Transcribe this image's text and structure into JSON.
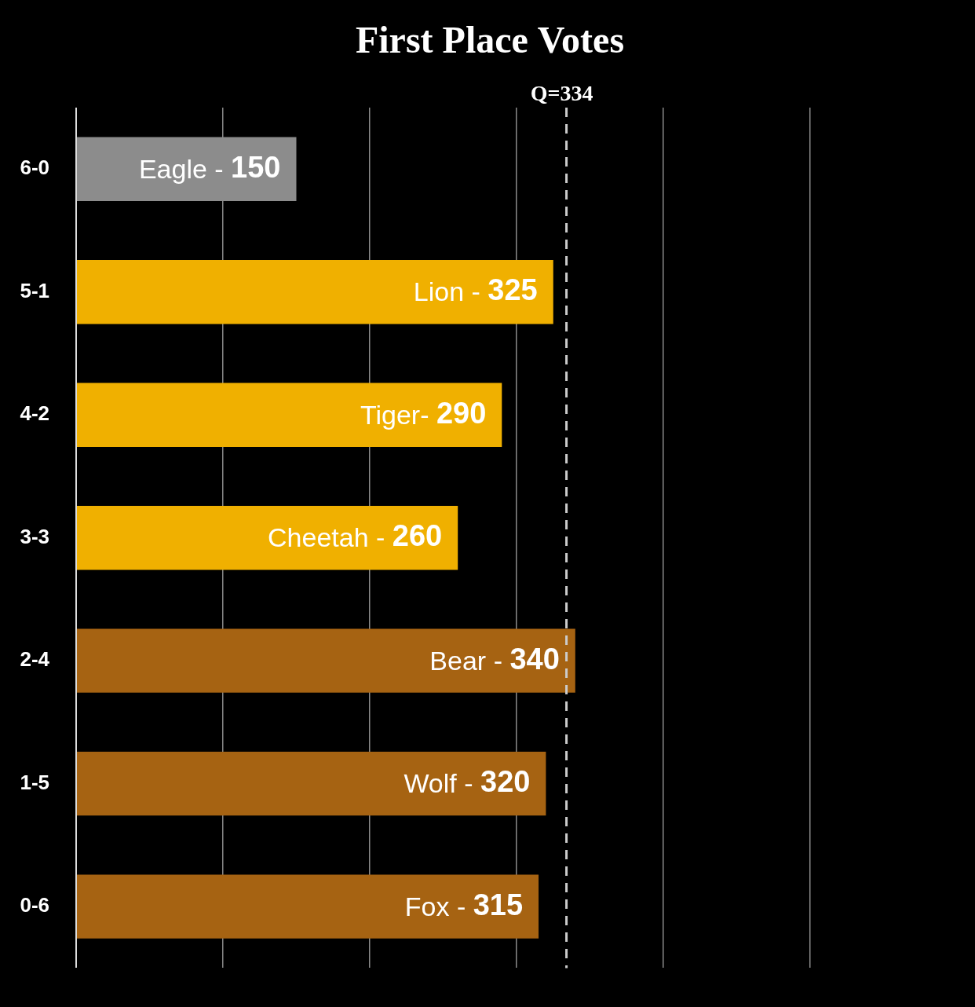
{
  "chart_data": {
    "type": "bar",
    "orientation": "horizontal",
    "title": "First Place Votes",
    "categories": [
      "6-0",
      "5-1",
      "4-2",
      "3-3",
      "2-4",
      "1-5",
      "0-6"
    ],
    "values": [
      150,
      325,
      290,
      260,
      340,
      320,
      315
    ],
    "value_labels": [
      "Eagle - 150",
      "Lion - 325",
      "Tiger- 290",
      "Cheetah - 260",
      "Bear - 340",
      "Wolf - 320",
      "Fox - 315"
    ],
    "data_labels": true,
    "colors": [
      "#8c8c8c",
      "#f0b000",
      "#f0b000",
      "#f0b000",
      "#a66312",
      "#a66312",
      "#a66312"
    ],
    "xlim": [
      0,
      500
    ],
    "xticks": [
      0,
      100,
      200,
      300,
      400,
      500
    ],
    "grid": true,
    "tick_labels": "y",
    "annotations": [
      {
        "x": 334,
        "label": "Q=334",
        "line_style": "dashed"
      }
    ]
  }
}
